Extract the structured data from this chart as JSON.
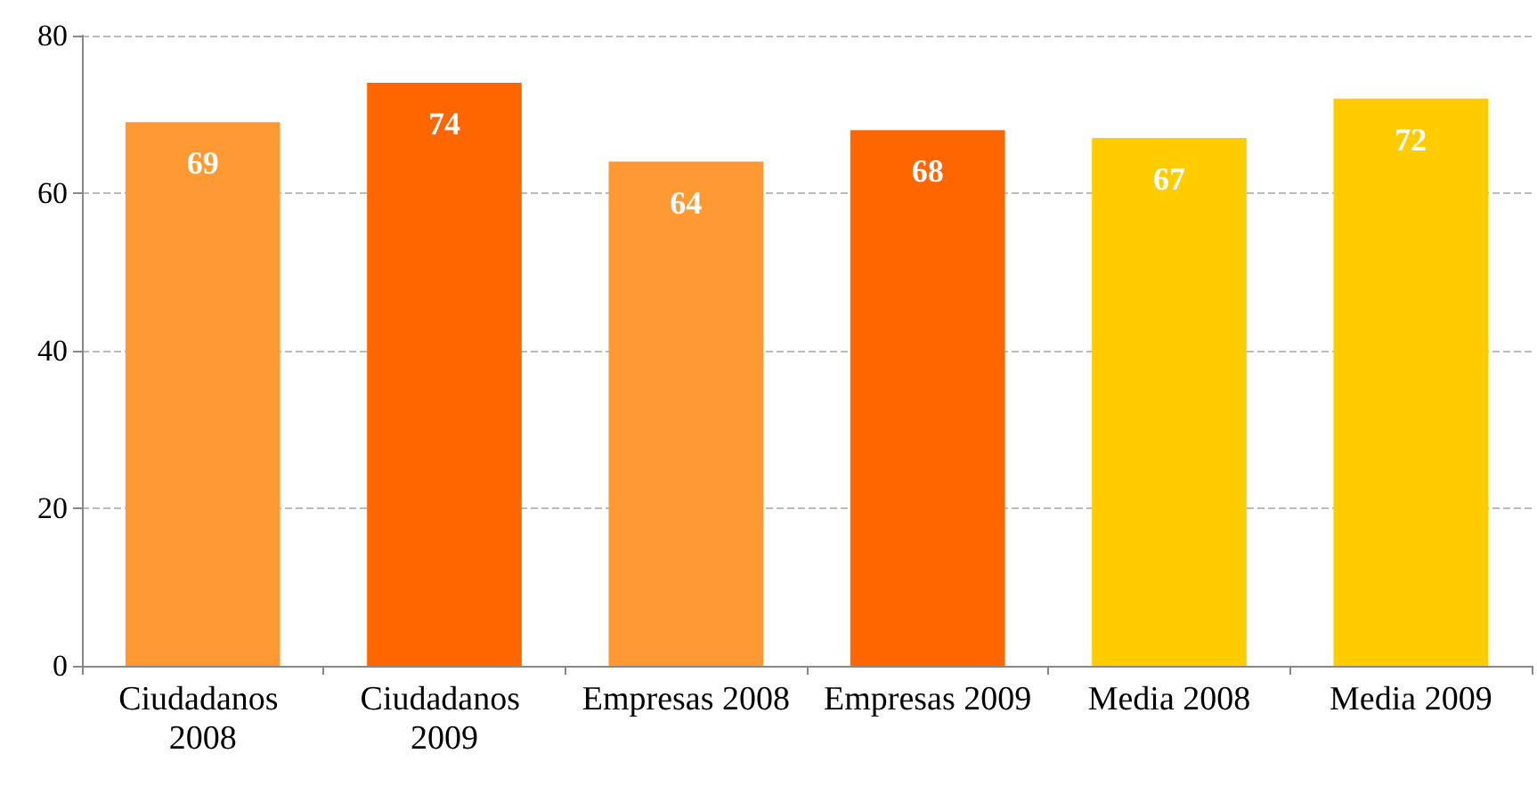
{
  "chart_data": {
    "type": "bar",
    "categories": [
      "Ciudadanos 2008",
      "Ciudadanos 2009",
      "Empresas 2008",
      "Empresas 2009",
      "Media 2008",
      "Media 2009"
    ],
    "values": [
      69,
      74,
      64,
      68,
      67,
      72
    ],
    "colors": [
      "#ff9933",
      "#ff6600",
      "#ff9933",
      "#ff6600",
      "#ffcc00",
      "#ffcc00"
    ],
    "ylim": [
      0,
      80
    ],
    "yticks": [
      0,
      20,
      40,
      60,
      80
    ],
    "grid": "y",
    "data_labels": true
  }
}
